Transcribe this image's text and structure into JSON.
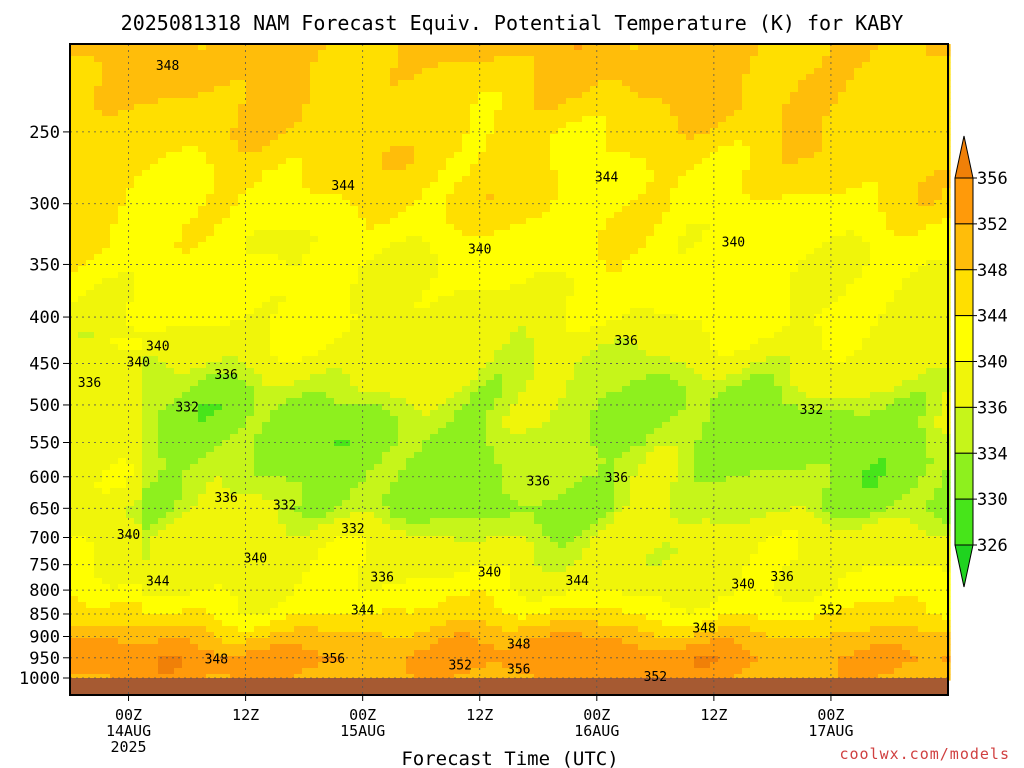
{
  "chart_data": {
    "type": "heatmap",
    "title": "2025081318 NAM Forecast Equiv. Potential Temperature (K) for KABY",
    "xlabel": "Forecast Time (UTC)",
    "ylabel": "",
    "credit": "coolwx.com/models",
    "y_scale": "log-pressure",
    "ylim": [
      1000,
      200
    ],
    "y_ticks": [
      250,
      300,
      350,
      400,
      450,
      500,
      550,
      600,
      650,
      700,
      750,
      800,
      850,
      900,
      950,
      1000
    ],
    "x_hours_range": [
      -6,
      84
    ],
    "x_ticks": [
      {
        "hour": 0,
        "lines": [
          "00Z",
          "14AUG",
          "2025"
        ]
      },
      {
        "hour": 12,
        "lines": [
          "12Z"
        ]
      },
      {
        "hour": 24,
        "lines": [
          "00Z",
          "15AUG"
        ]
      },
      {
        "hour": 36,
        "lines": [
          "12Z"
        ]
      },
      {
        "hour": 48,
        "lines": [
          "00Z",
          "16AUG"
        ]
      },
      {
        "hour": 60,
        "lines": [
          "12Z"
        ]
      },
      {
        "hour": 72,
        "lines": [
          "00Z",
          "17AUG"
        ]
      }
    ],
    "grid": true,
    "colorbar": {
      "levels": [
        326,
        330,
        334,
        336,
        340,
        344,
        348,
        352,
        356
      ],
      "colors": [
        "#1fd31f",
        "#47e51a",
        "#8ef01e",
        "#c6f51a",
        "#f0f50a",
        "#ffff00",
        "#ffdf00",
        "#ffbd0a",
        "#ff9a0a",
        "#f08008"
      ]
    },
    "surface_color": "#a65a32",
    "contour_interval": 2,
    "bands": [
      {
        "p": 1000,
        "theta": 352
      },
      {
        "p": 950,
        "theta": 354
      },
      {
        "p": 900,
        "theta": 350
      },
      {
        "p": 850,
        "theta": 344
      },
      {
        "p": 800,
        "theta": 340
      },
      {
        "p": 750,
        "theta": 338
      },
      {
        "p": 700,
        "theta": 337
      },
      {
        "p": 650,
        "theta": 334
      },
      {
        "p": 600,
        "theta": 334
      },
      {
        "p": 550,
        "theta": 333
      },
      {
        "p": 500,
        "theta": 334
      },
      {
        "p": 450,
        "theta": 337
      },
      {
        "p": 400,
        "theta": 340
      },
      {
        "p": 350,
        "theta": 341
      },
      {
        "p": 300,
        "theta": 344
      },
      {
        "p": 250,
        "theta": 346
      },
      {
        "p": 200,
        "theta": 349
      }
    ],
    "contour_labels": [
      {
        "hour": 4,
        "p": 211,
        "text": "348"
      },
      {
        "hour": 22,
        "p": 286,
        "text": "344"
      },
      {
        "hour": 36,
        "p": 336,
        "text": "340"
      },
      {
        "hour": 49,
        "p": 280,
        "text": "344"
      },
      {
        "hour": 62,
        "p": 330,
        "text": "340"
      },
      {
        "hour": -4,
        "p": 472,
        "text": "336"
      },
      {
        "hour": 1,
        "p": 448,
        "text": "340"
      },
      {
        "hour": 3,
        "p": 430,
        "text": "340"
      },
      {
        "hour": 6,
        "p": 502,
        "text": "332"
      },
      {
        "hour": 10,
        "p": 462,
        "text": "336"
      },
      {
        "hour": 10,
        "p": 632,
        "text": "336"
      },
      {
        "hour": 16,
        "p": 644,
        "text": "332"
      },
      {
        "hour": 23,
        "p": 683,
        "text": "332"
      },
      {
        "hour": 51,
        "p": 424,
        "text": "336"
      },
      {
        "hour": 42,
        "p": 606,
        "text": "336"
      },
      {
        "hour": 50,
        "p": 600,
        "text": "336"
      },
      {
        "hour": 70,
        "p": 505,
        "text": "332"
      },
      {
        "hour": 0,
        "p": 694,
        "text": "340"
      },
      {
        "hour": 13,
        "p": 736,
        "text": "340"
      },
      {
        "hour": 26,
        "p": 773,
        "text": "336"
      },
      {
        "hour": 37,
        "p": 763,
        "text": "340"
      },
      {
        "hour": 46,
        "p": 780,
        "text": "344"
      },
      {
        "hour": 63,
        "p": 787,
        "text": "340"
      },
      {
        "hour": 67,
        "p": 772,
        "text": "336"
      },
      {
        "hour": 3,
        "p": 781,
        "text": "344"
      },
      {
        "hour": 24,
        "p": 840,
        "text": "344"
      },
      {
        "hour": 59,
        "p": 880,
        "text": "348"
      },
      {
        "hour": 72,
        "p": 840,
        "text": "352"
      },
      {
        "hour": 9,
        "p": 952,
        "text": "348"
      },
      {
        "hour": 21,
        "p": 950,
        "text": "356"
      },
      {
        "hour": 40,
        "p": 916,
        "text": "348"
      },
      {
        "hour": 34,
        "p": 966,
        "text": "352"
      },
      {
        "hour": 40,
        "p": 976,
        "text": "356"
      },
      {
        "hour": 54,
        "p": 995,
        "text": "352"
      }
    ]
  }
}
